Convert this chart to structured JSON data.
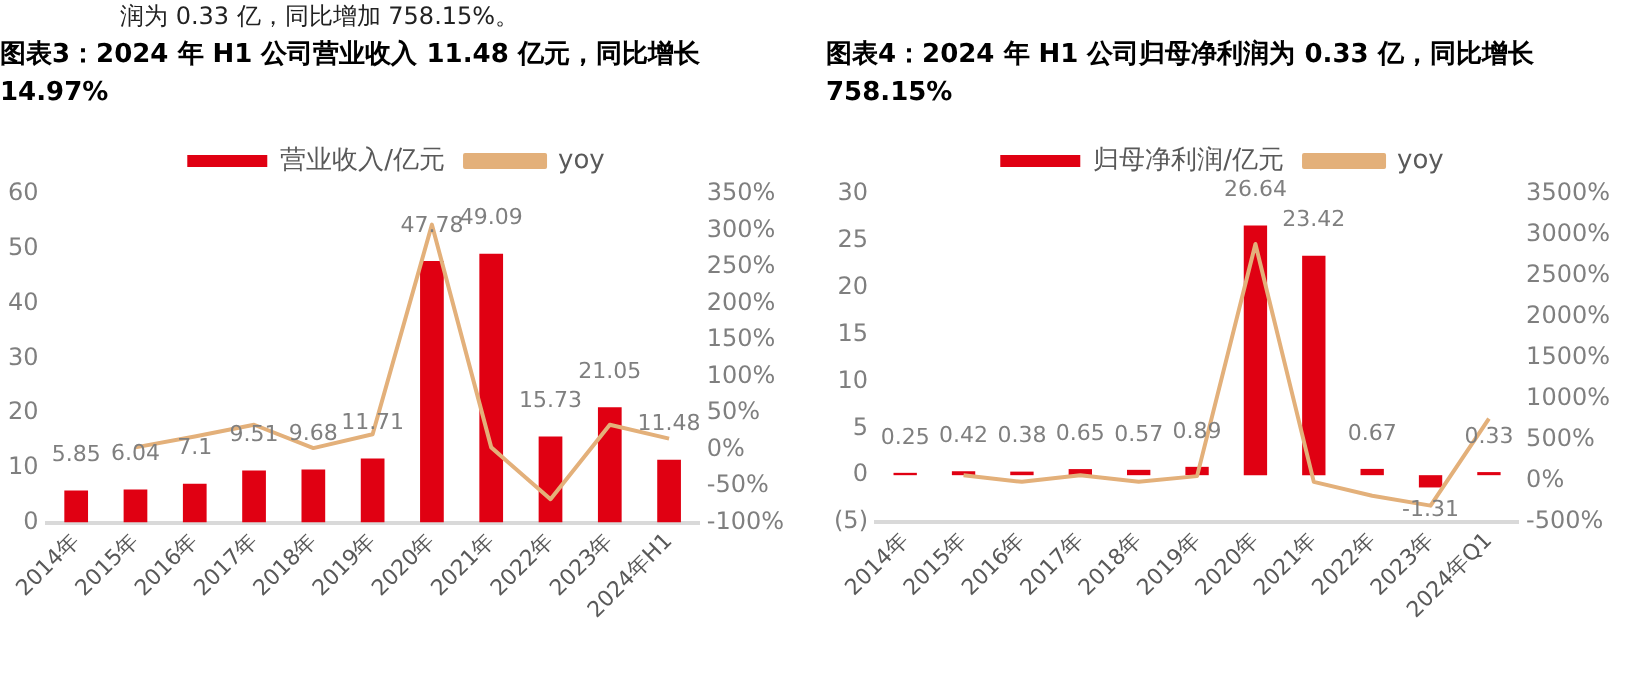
{
  "chart_data": [
    {
      "type": "bar",
      "title": "图表3：2024 年 H1 公司营业收入 11.48 亿元，同比增长 14.97%",
      "annotations": [
        "润为 0.33 亿，同比增加 758.15%。"
      ],
      "categories": [
        "2014年",
        "2015年",
        "2016年",
        "2017年",
        "2018年",
        "2019年",
        "2020年",
        "2021年",
        "2022年",
        "2023年",
        "2024年H1"
      ],
      "series": [
        {
          "name": "营业收入/亿元",
          "color": "#e00012",
          "values": [
            5.85,
            6.04,
            7.1,
            9.51,
            9.68,
            11.71,
            47.78,
            49.09,
            15.73,
            21.05,
            11.48
          ],
          "value_labels": [
            "5.85",
            "6.04",
            "7.1",
            "9.51",
            "9.68",
            "11.71",
            "47.78",
            "49.09",
            "15.73",
            "21.05",
            "11.48"
          ]
        },
        {
          "name": "yoy",
          "type": "line",
          "axis": "y2",
          "color": "#e3b07a",
          "values": [
            null,
            3,
            18,
            34,
            2,
            21,
            308,
            3,
            -68,
            34,
            15
          ]
        }
      ],
      "ylim": [
        0,
        60
      ],
      "yticks": [
        0,
        10,
        20,
        30,
        40,
        50,
        60
      ],
      "y2lim": [
        -100,
        350
      ],
      "y2ticks": [
        {
          "value": -100,
          "label": "-100%"
        },
        {
          "value": -50,
          "label": "-50%"
        },
        {
          "value": 0,
          "label": "0%"
        },
        {
          "value": 50,
          "label": "50%"
        },
        {
          "value": 100,
          "label": "100%"
        },
        {
          "value": 150,
          "label": "150%"
        },
        {
          "value": 200,
          "label": "200%"
        },
        {
          "value": 250,
          "label": "250%"
        },
        {
          "value": 300,
          "label": "300%"
        },
        {
          "value": 350,
          "label": "350%"
        }
      ],
      "grid": false,
      "legend": "top",
      "marker": "none"
    },
    {
      "type": "bar",
      "title": "图表4：2024 年 H1 公司归母净利润为 0.33 亿，同比增长 758.15%",
      "categories": [
        "2014年",
        "2015年",
        "2016年",
        "2017年",
        "2018年",
        "2019年",
        "2020年",
        "2021年",
        "2022年",
        "2023年",
        "2024年Q1"
      ],
      "series": [
        {
          "name": "归母净利润/亿元",
          "color": "#e00012",
          "values": [
            0.25,
            0.42,
            0.38,
            0.65,
            0.57,
            0.89,
            26.64,
            23.42,
            0.67,
            -1.31,
            0.33
          ],
          "value_labels": [
            "0.25",
            "0.42",
            "0.38",
            "0.65",
            "0.57",
            "0.89",
            "26.64",
            "23.42",
            "0.67",
            "-1.31",
            "0.33"
          ]
        },
        {
          "name": "yoy",
          "type": "line",
          "axis": "y2",
          "color": "#e3b07a",
          "values": [
            null,
            70,
            -10,
            70,
            -10,
            60,
            2890,
            -10,
            -180,
            -300,
            760
          ]
        }
      ],
      "ylim": [
        -5,
        30
      ],
      "yticks": [
        {
          "value": -5,
          "label": "(5)"
        },
        0,
        5,
        10,
        15,
        20,
        25,
        30
      ],
      "y2lim": [
        -500,
        3500
      ],
      "y2ticks": [
        {
          "value": -500,
          "label": "-500%"
        },
        {
          "value": 0,
          "label": "0%"
        },
        {
          "value": 500,
          "label": "500%"
        },
        {
          "value": 1000,
          "label": "1000%"
        },
        {
          "value": 1500,
          "label": "1500%"
        },
        {
          "value": 2000,
          "label": "2000%"
        },
        {
          "value": 2500,
          "label": "2500%"
        },
        {
          "value": 3000,
          "label": "3000%"
        },
        {
          "value": 3500,
          "label": "3500%"
        }
      ],
      "grid": false,
      "legend": "top",
      "marker": "none"
    }
  ]
}
